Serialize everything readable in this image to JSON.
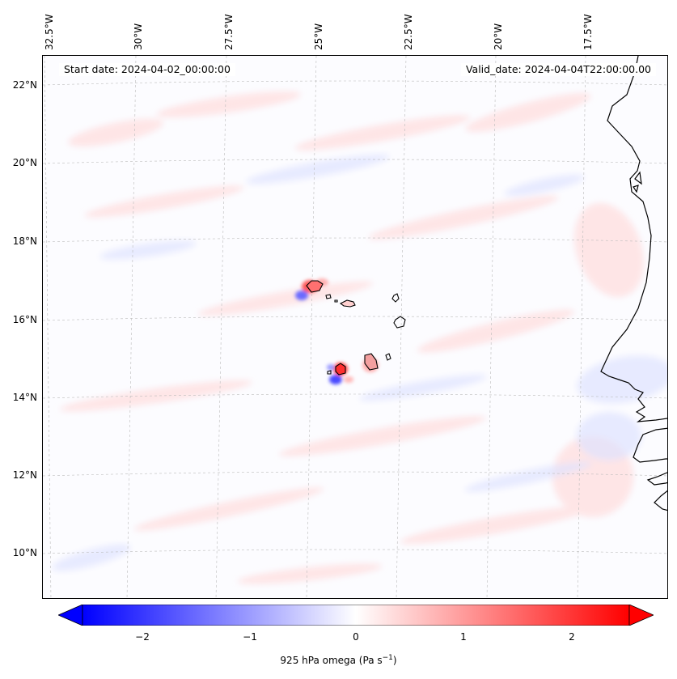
{
  "header": {
    "start_date": "Start date: 2024-04-02_00:00:00",
    "valid_date": "Valid_date: 2024-04-04T22:00:00.00"
  },
  "axes": {
    "lon_labels": [
      "32.5°W",
      "30°W",
      "27.5°W",
      "25°W",
      "22.5°W",
      "20°W",
      "17.5°W"
    ],
    "lat_labels": [
      "22°N",
      "20°N",
      "18°N",
      "16°N",
      "14°N",
      "12°N",
      "10°N"
    ]
  },
  "colorbar": {
    "ticks": [
      "−2",
      "−1",
      "0",
      "1",
      "2"
    ],
    "label": "925 hPa omega (Pa s",
    "label_sup": "−1",
    "label_close": ")",
    "colors": {
      "min": "#0000ff",
      "mid": "#ffffff",
      "max": "#ff0000"
    }
  },
  "map": {
    "colors": {
      "land_outline": "#000000",
      "grid": "#bbbbbb"
    }
  }
}
